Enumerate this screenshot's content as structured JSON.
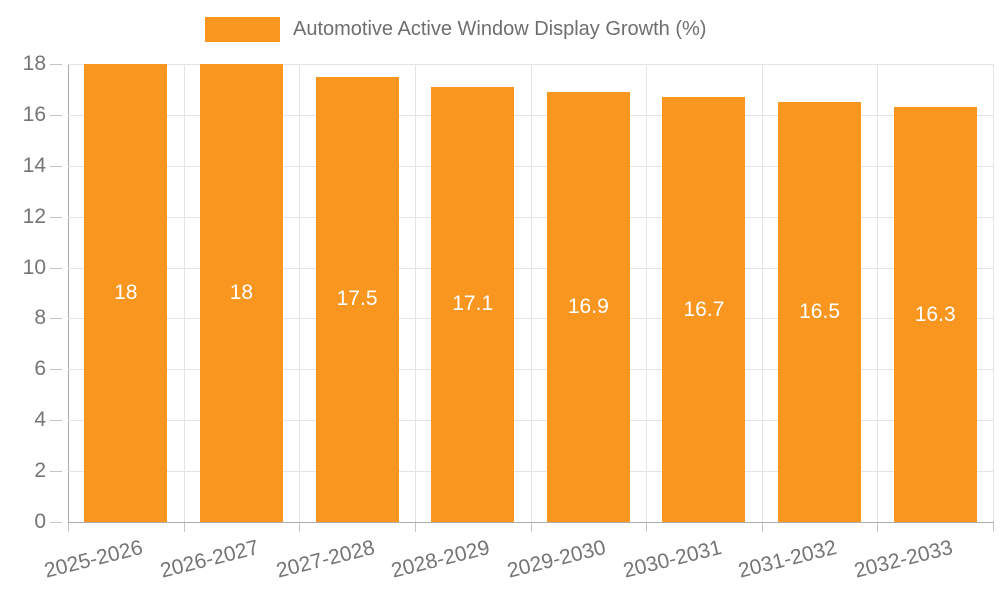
{
  "chart_data": {
    "type": "bar",
    "title": "Automotive Active Window Display Growth (%)",
    "legend_label": "Automotive Active Window Display Growth (%)",
    "categories": [
      "2025-2026",
      "2026-2027",
      "2027-2028",
      "2028-2029",
      "2029-2030",
      "2030-2031",
      "2031-2032",
      "2032-2033"
    ],
    "values": [
      18,
      18,
      17.5,
      17.1,
      16.9,
      16.7,
      16.5,
      16.3
    ],
    "bar_labels": [
      "18",
      "18",
      "17.5",
      "17.1",
      "16.9",
      "16.7",
      "16.5",
      "16.3"
    ],
    "xlabel": "",
    "ylabel": "",
    "ylim": [
      0,
      18
    ],
    "yticks": [
      0,
      2,
      4,
      6,
      8,
      10,
      12,
      14,
      16,
      18
    ],
    "grid": true,
    "legend_position": "top",
    "bar_color": "#F89620",
    "value_label_color": "#FFFFFF",
    "axis_text_color": "#757575",
    "grid_color": "#E4E4E4",
    "axis_line_color": "#ABABAB"
  }
}
